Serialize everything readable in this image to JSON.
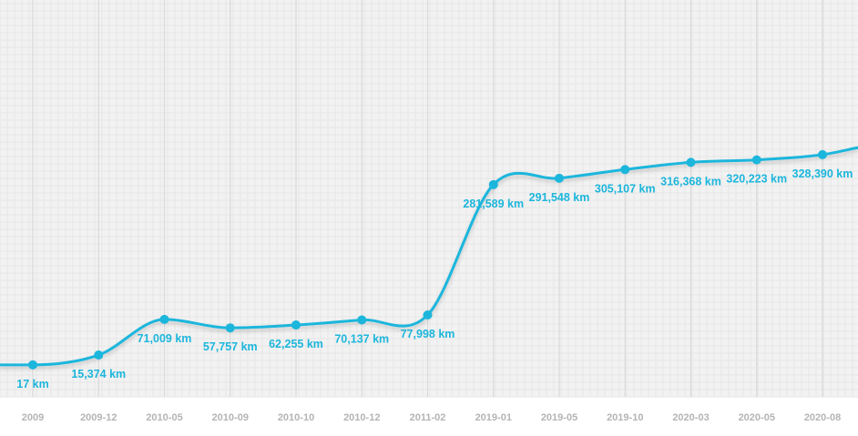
{
  "colors": {
    "line": "#1cb6dc",
    "plot_background": "#f2f2f2",
    "axis_band": "#ffffff",
    "minor_grid": "#e6e6e6",
    "major_grid": "#d9d9d9",
    "tick_text": "#b4b4b4"
  },
  "chart_data": {
    "type": "line",
    "title": "",
    "xlabel": "",
    "ylabel": "",
    "grid": true,
    "legend": "none",
    "y_unit": "km",
    "ylim": [
      -50000,
      570000
    ],
    "categories": [
      "2009",
      "2009-12",
      "2010-05",
      "2010-09",
      "2010-10",
      "2010-12",
      "2011-02",
      "2019-01",
      "2019-05",
      "2019-10",
      "2020-03",
      "2020-05",
      "2020-08"
    ],
    "values": [
      17,
      15374,
      71009,
      57757,
      62255,
      70137,
      77998,
      281589,
      291548,
      305107,
      316368,
      320223,
      328390
    ],
    "data_labels": [
      "17 km",
      "15,374 km",
      "71,009 km",
      "57,757 km",
      "62,255 km",
      "70,137 km",
      "77,998 km",
      "281,589 km",
      "291,548 km",
      "305,107 km",
      "316,368 km",
      "320,223 km",
      "328,390 km"
    ]
  }
}
